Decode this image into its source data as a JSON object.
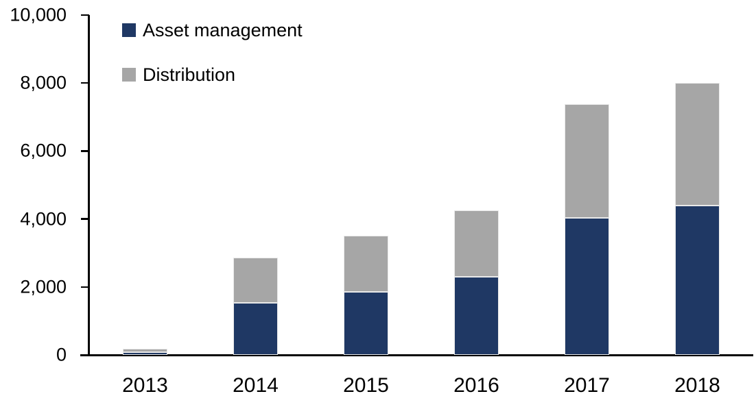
{
  "chart_data": {
    "type": "bar",
    "stacked": true,
    "title": "",
    "xlabel": "",
    "ylabel": "",
    "categories": [
      "2013",
      "2014",
      "2015",
      "2016",
      "2017",
      "2018"
    ],
    "series": [
      {
        "name": "Asset management",
        "color": "#1F3864",
        "values": [
          90,
          1530,
          1860,
          2290,
          4030,
          4400
        ]
      },
      {
        "name": "Distribution",
        "color": "#A6A6A6",
        "values": [
          85,
          1330,
          1640,
          1960,
          3350,
          3600
        ]
      }
    ],
    "ylim": [
      0,
      10000
    ],
    "yticks": [
      0,
      2000,
      4000,
      6000,
      8000,
      10000
    ],
    "ytick_labels": [
      "0",
      "2,000",
      "4,000",
      "6,000",
      "8,000",
      "10,000"
    ],
    "grid": false,
    "legend_position": "top-left-inside",
    "axis_color": "#000000",
    "bar_border_color": "#E9E9E9"
  }
}
